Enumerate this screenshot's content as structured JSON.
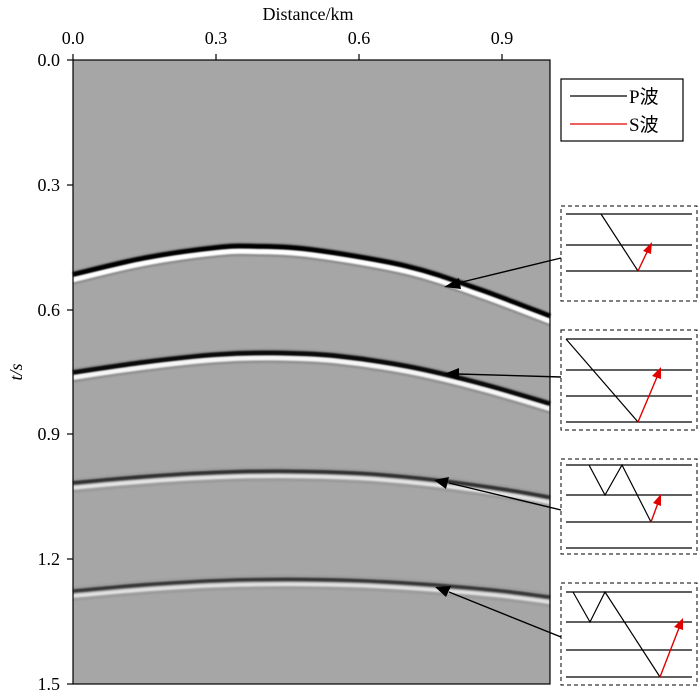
{
  "figure": {
    "x_axis_label": "Distance/km",
    "y_axis_label": "t/s",
    "x_ticks": [
      "0.0",
      "0.3",
      "0.6",
      "0.9"
    ],
    "y_ticks": [
      "0.0",
      "0.3",
      "0.6",
      "0.9",
      "1.2",
      "1.5"
    ],
    "legend": {
      "p_wave_label": "P波",
      "s_wave_label": "S波",
      "p_color": "#000000",
      "s_color": "#e00000"
    },
    "background_color": "#a6a6a6"
  },
  "chart_data": {
    "type": "line",
    "xlabel": "Distance/km",
    "ylabel": "t/s",
    "xlim": [
      0,
      1.0
    ],
    "ylim": [
      1.5,
      0
    ],
    "x_ticks": [
      0.0,
      0.3,
      0.6,
      0.9
    ],
    "y_ticks": [
      0.0,
      0.3,
      0.6,
      0.9,
      1.2,
      1.5
    ],
    "grid": false,
    "legend_position": "top-right",
    "series": [
      {
        "x": [
          0,
          0.15,
          0.3,
          0.38,
          0.5,
          0.7,
          0.85,
          1.0
        ],
        "y": [
          0.52,
          0.48,
          0.455,
          0.452,
          0.46,
          0.5,
          0.555,
          0.62
        ],
        "strength": 1.0
      },
      {
        "x": [
          0,
          0.15,
          0.3,
          0.42,
          0.55,
          0.7,
          0.85,
          1.0
        ],
        "y": [
          0.755,
          0.73,
          0.712,
          0.708,
          0.715,
          0.74,
          0.78,
          0.83
        ],
        "strength": 0.85
      },
      {
        "x": [
          0,
          0.15,
          0.3,
          0.45,
          0.6,
          0.75,
          0.9,
          1.0
        ],
        "y": [
          1.02,
          1.005,
          0.995,
          0.992,
          0.997,
          1.012,
          1.035,
          1.055
        ],
        "strength": 0.5
      },
      {
        "x": [
          0,
          0.15,
          0.3,
          0.45,
          0.6,
          0.75,
          0.9,
          1.0
        ],
        "y": [
          1.28,
          1.265,
          1.255,
          1.252,
          1.255,
          1.265,
          1.28,
          1.295
        ],
        "strength": 0.45
      }
    ]
  }
}
